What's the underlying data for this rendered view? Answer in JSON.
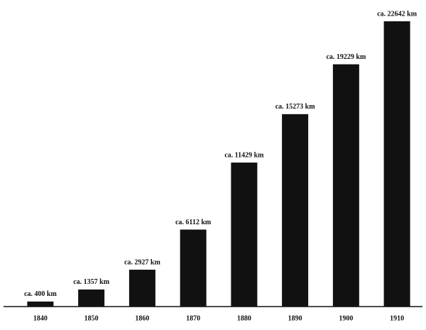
{
  "chart_data": {
    "type": "bar",
    "categories": [
      "1840",
      "1850",
      "1860",
      "1870",
      "1880",
      "1890",
      "1900",
      "1910"
    ],
    "values": [
      400,
      1357,
      2927,
      6112,
      11429,
      15273,
      19229,
      22642
    ],
    "value_labels": [
      "ca. 400 km",
      "ca. 1357 km",
      "ca. 2927 km",
      "ca. 6112 km",
      "ca. 11429 km",
      "ca. 15273 km",
      "ca. 19229 km",
      "ca. 22642 km"
    ],
    "color": "#111111"
  }
}
